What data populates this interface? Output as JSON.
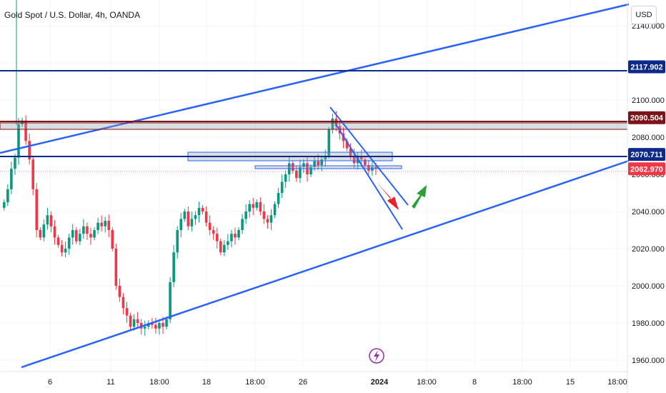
{
  "header": {
    "title": "Gold Spot / U.S. Dollar, 4h, OANDA"
  },
  "currency_button": "USD",
  "colors": {
    "up": "#089981",
    "down": "#f23645",
    "trend": "#2962ff",
    "level": "#0d2a8a",
    "resistance": "#7b1419",
    "last_price": "#f23645",
    "arrow_up": "#2e9e3a",
    "arrow_down": "#e8232b"
  },
  "chart_data": {
    "type": "candlestick",
    "instrument": "Gold Spot / U.S. Dollar",
    "timeframe": "4h",
    "source": "OANDA",
    "y_ticks": [
      2140,
      2120,
      2100,
      2080,
      2060,
      2040,
      2020,
      2000,
      1980,
      1960
    ],
    "y_tick_labels": [
      "2140.000",
      "2120.000",
      "2100.000",
      "2080.000",
      "2060.000",
      "2040.000",
      "2020.000",
      "2000.000",
      "1980.000",
      "1960.000"
    ],
    "x_labels": [
      "6",
      "11",
      "18:00",
      "18",
      "18:00",
      "26",
      "2024",
      "18:00",
      "8",
      "18:00",
      "15",
      "18:00"
    ],
    "ylim": [
      1955,
      2145
    ],
    "price_tags": [
      {
        "label": "2117.902",
        "value": 2117.902,
        "kind": "level"
      },
      {
        "label": "2090.504",
        "value": 2090.504,
        "kind": "resistance"
      },
      {
        "label": "2070.711",
        "value": 2070.711,
        "kind": "level"
      },
      {
        "label": "2062.970",
        "value": 2062.97,
        "kind": "last_price"
      }
    ],
    "closes": [
      2045,
      2052,
      2063,
      2069,
      2087,
      2089,
      2078,
      2068,
      2052,
      2030,
      2026,
      2033,
      2038,
      2032,
      2026,
      2022,
      2018,
      2020,
      2026,
      2030,
      2024,
      2028,
      2032,
      2028,
      2026,
      2030,
      2034,
      2032,
      2035,
      2030,
      2020,
      2000,
      1994,
      1988,
      1984,
      1978,
      1982,
      1980,
      1977,
      1978,
      1980,
      1979,
      1977,
      1980,
      1978,
      1982,
      2002,
      2018,
      2030,
      2036,
      2040,
      2032,
      2036,
      2038,
      2042,
      2040,
      2034,
      2030,
      2028,
      2024,
      2018,
      2022,
      2024,
      2028,
      2026,
      2030,
      2036,
      2040,
      2044,
      2042,
      2045,
      2040,
      2036,
      2034,
      2038,
      2044,
      2050,
      2056,
      2060,
      2066,
      2062,
      2058,
      2064,
      2066,
      2060,
      2064,
      2067,
      2065,
      2068,
      2070,
      2084,
      2090,
      2086,
      2082,
      2078,
      2074,
      2070,
      2066,
      2070,
      2068,
      2065,
      2062,
      2064,
      2063
    ]
  }
}
